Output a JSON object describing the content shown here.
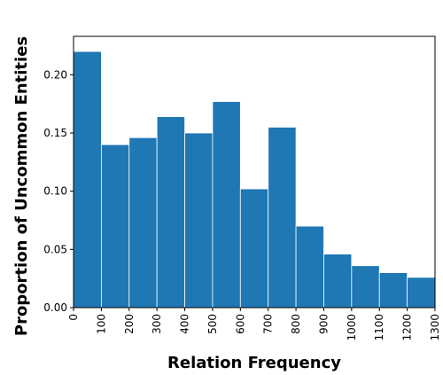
{
  "chart_data": {
    "type": "bar",
    "title": "",
    "xlabel": "Relation Frequency",
    "ylabel": "Proportion of Uncommon Entities",
    "bin_edges": [
      0,
      100,
      200,
      300,
      400,
      500,
      600,
      700,
      800,
      900,
      1000,
      1100,
      1200,
      1300
    ],
    "categories": [
      "0-100",
      "100-200",
      "200-300",
      "300-400",
      "400-500",
      "500-600",
      "600-700",
      "700-800",
      "800-900",
      "900-1000",
      "1000-1100",
      "1100-1200",
      "1200-1300"
    ],
    "values": [
      0.22,
      0.14,
      0.146,
      0.164,
      0.15,
      0.177,
      0.102,
      0.155,
      0.07,
      0.046,
      0.036,
      0.03,
      0.026
    ],
    "xlim": [
      0,
      1300
    ],
    "ylim": [
      0,
      0.233
    ],
    "xticks": [
      "0",
      "100",
      "200",
      "300",
      "400",
      "500",
      "600",
      "700",
      "800",
      "900",
      "1000",
      "1100",
      "1200",
      "1300"
    ],
    "xtick_values": [
      0,
      100,
      200,
      300,
      400,
      500,
      600,
      700,
      800,
      900,
      1000,
      1100,
      1200,
      1300
    ],
    "yticks": [
      "0.00",
      "0.05",
      "0.10",
      "0.15",
      "0.20"
    ],
    "ytick_values": [
      0.0,
      0.05,
      0.1,
      0.15,
      0.2
    ],
    "bar_color": "#1f77b4",
    "grid": false,
    "legend": "none"
  }
}
